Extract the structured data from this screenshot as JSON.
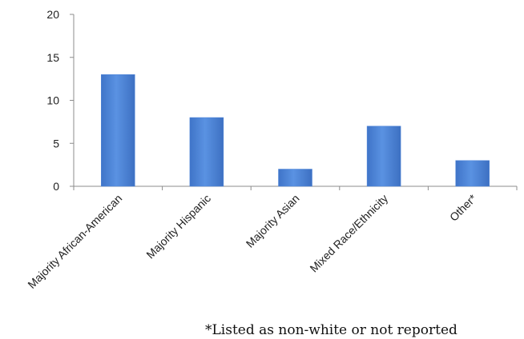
{
  "chart_data": {
    "type": "bar",
    "categories": [
      "Majority African-American",
      "Majority Hispanic",
      "Majority Asian",
      "Mixed Race/Ethnicity",
      "Other*"
    ],
    "values": [
      13,
      8,
      2,
      7,
      3
    ],
    "ylim": [
      0,
      20
    ],
    "yticks": [
      0,
      5,
      10,
      15,
      20
    ],
    "grid": false,
    "legend": "none",
    "bar_color": "#4f86d9"
  },
  "footnote": "*Listed as non-white or not reported"
}
